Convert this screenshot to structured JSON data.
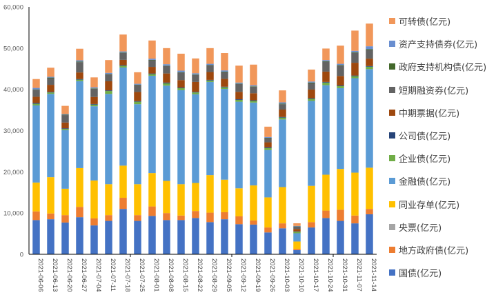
{
  "chart_data": {
    "type": "bar",
    "stacked": true,
    "title": "",
    "xlabel": "",
    "ylabel": "",
    "ylim": [
      0,
      60000
    ],
    "yticks": [
      "0",
      "10,000",
      "20,000",
      "30,000",
      "40,000",
      "50,000",
      "60,000"
    ],
    "ytick_values": [
      0,
      10000,
      20000,
      30000,
      40000,
      50000,
      60000
    ],
    "grid": false,
    "legend_position": "right",
    "categories": [
      "2021-06-06",
      "2021-06-13",
      "2021-06-20",
      "2021-06-27",
      "2021-07-04",
      "2021-07-11",
      "2021-07-18",
      "2021-07-25",
      "2021-08-01",
      "2021-08-08",
      "2021-08-15",
      "2021-08-22",
      "2021-08-29",
      "2021-09-05",
      "2021-09-12",
      "2021-09-19",
      "2021-09-26",
      "2021-10-03",
      "2021-10-10",
      "2021-10-17",
      "2021-10-24",
      "2021-10-31",
      "2021-11-07",
      "2021-11-14"
    ],
    "series": [
      {
        "name": "国债(亿元)",
        "color": "#4472C4",
        "values": [
          8300,
          8500,
          7700,
          9000,
          7000,
          8100,
          11000,
          8100,
          9300,
          8300,
          8300,
          8800,
          7800,
          8500,
          7300,
          7200,
          5300,
          6300,
          1000,
          6500,
          8800,
          8100,
          7500,
          9700
        ]
      },
      {
        "name": "地方政府债(亿元)",
        "color": "#ED7D31",
        "values": [
          2100,
          1400,
          1800,
          2500,
          1700,
          1400,
          2700,
          1400,
          2300,
          1700,
          1100,
          1700,
          2300,
          1700,
          1900,
          1000,
          1200,
          1200,
          300,
          1300,
          1800,
          2700,
          1900,
          1300
        ]
      },
      {
        "name": "央票(亿元)",
        "color": "#A5A5A5",
        "values": [
          0,
          0,
          0,
          0,
          0,
          0,
          0,
          0,
          0,
          0,
          0,
          0,
          0,
          0,
          0,
          0,
          0,
          0,
          0,
          0,
          0,
          0,
          0,
          0
        ]
      },
      {
        "name": "同业存单(亿元)",
        "color": "#FFC000",
        "values": [
          7000,
          8800,
          6400,
          9400,
          9200,
          7500,
          7800,
          7500,
          8100,
          7800,
          7600,
          6800,
          9100,
          7900,
          6800,
          8500,
          7300,
          8800,
          1800,
          8800,
          8700,
          9900,
          10400,
          10000
        ]
      },
      {
        "name": "金融债(亿元)",
        "color": "#5B9BD5",
        "values": [
          18700,
          20200,
          14200,
          21100,
          18000,
          21900,
          23800,
          19400,
          23600,
          23100,
          22800,
          21500,
          22600,
          22000,
          21000,
          20100,
          11500,
          16400,
          2000,
          20600,
          21700,
          19600,
          22900,
          23900
        ]
      },
      {
        "name": "企业债(亿元)",
        "color": "#70AD47",
        "values": [
          400,
          350,
          300,
          350,
          400,
          700,
          400,
          600,
          400,
          550,
          500,
          450,
          350,
          400,
          450,
          400,
          450,
          450,
          350,
          500,
          650,
          500,
          500,
          600
        ]
      },
      {
        "name": "公司债(亿元)",
        "color": "#264478",
        "values": [
          200,
          150,
          150,
          150,
          150,
          150,
          150,
          150,
          150,
          200,
          150,
          150,
          150,
          150,
          150,
          150,
          200,
          150,
          100,
          150,
          150,
          150,
          150,
          150
        ]
      },
      {
        "name": "中期票据(亿元)",
        "color": "#9E480E",
        "values": [
          1500,
          1700,
          1400,
          1600,
          1700,
          2200,
          1300,
          2200,
          1600,
          2200,
          1800,
          2400,
          1900,
          1900,
          1800,
          1700,
          1200,
          1800,
          600,
          2100,
          2500,
          2300,
          3100,
          1800
        ]
      },
      {
        "name": "短期融资券(亿元)",
        "color": "#636363",
        "values": [
          1700,
          1600,
          1800,
          2500,
          2000,
          1700,
          1700,
          1700,
          1600,
          1800,
          1800,
          1700,
          1600,
          1600,
          1900,
          1600,
          1000,
          1300,
          550,
          1500,
          2400,
          2500,
          2400,
          2100
        ]
      },
      {
        "name": "政府支持机构债(亿元)",
        "color": "#43682B",
        "values": [
          100,
          150,
          100,
          150,
          100,
          100,
          100,
          100,
          100,
          100,
          100,
          100,
          100,
          150,
          100,
          100,
          100,
          150,
          60,
          200,
          100,
          150,
          150,
          200
        ]
      },
      {
        "name": "资产支持债券(亿元)",
        "color": "#698ED0",
        "values": [
          350,
          200,
          150,
          300,
          250,
          250,
          250,
          200,
          300,
          350,
          400,
          300,
          300,
          300,
          250,
          250,
          200,
          300,
          120,
          250,
          300,
          300,
          350,
          700
        ]
      },
      {
        "name": "可转债(亿元)",
        "color": "#F1975A",
        "values": [
          2150,
          2200,
          2000,
          2800,
          2400,
          3100,
          4100,
          2800,
          4400,
          3900,
          4100,
          3600,
          3800,
          4200,
          4100,
          5000,
          2500,
          2900,
          640,
          2900,
          2800,
          4400,
          4900,
          5500
        ]
      }
    ]
  }
}
